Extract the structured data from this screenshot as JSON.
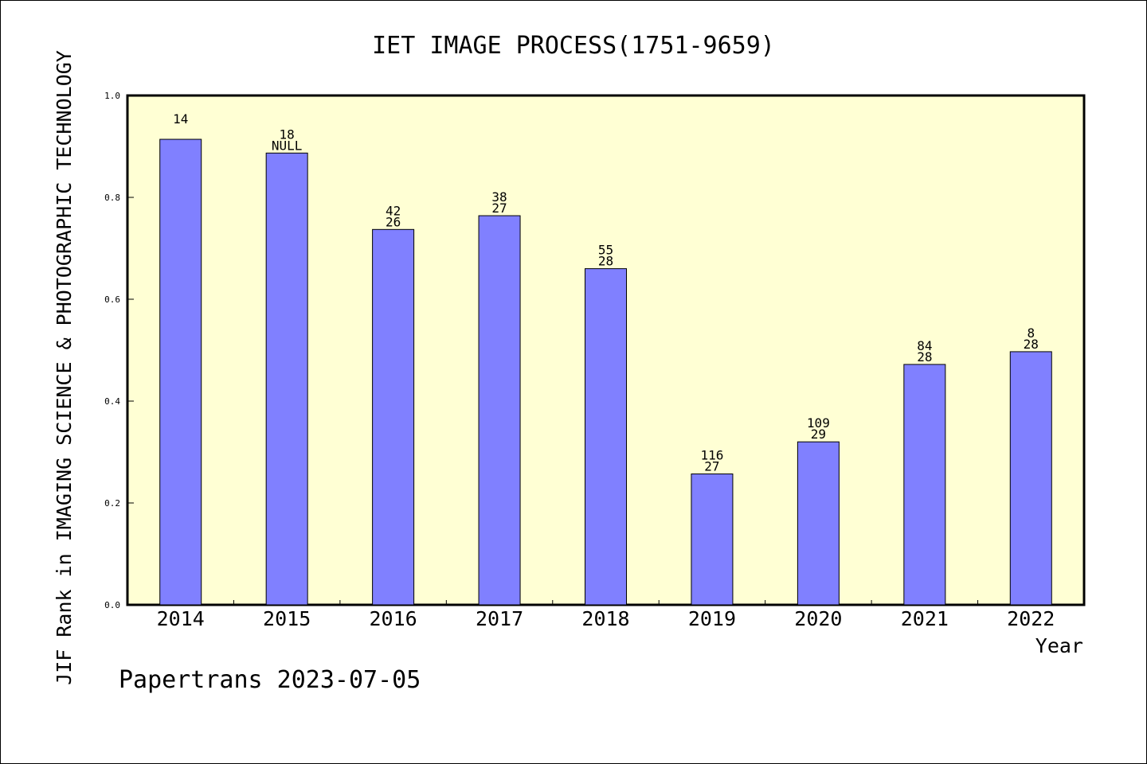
{
  "chart_data": {
    "type": "bar",
    "title": "IET IMAGE PROCESS(1751-9659)",
    "xlabel": "Year",
    "ylabel": "JIF Rank in IMAGING SCIENCE & PHOTOGRAPHIC TECHNOLOGY",
    "ylim": [
      0,
      1.0
    ],
    "yticks": [
      "0.0",
      "0.2",
      "0.4",
      "0.6",
      "0.8",
      "1.0"
    ],
    "categories": [
      "2014",
      "2015",
      "2016",
      "2017",
      "2018",
      "2019",
      "2020",
      "2021",
      "2022"
    ],
    "values": [
      0.914,
      0.887,
      0.737,
      0.764,
      0.66,
      0.257,
      0.32,
      0.472,
      0.497
    ],
    "labels_top": [
      "14",
      "18",
      "42",
      "38",
      "55",
      "116",
      "109",
      "84",
      "8"
    ],
    "labels_bottom": [
      "",
      "NULL",
      "26",
      "27",
      "28",
      "27",
      "29",
      "28",
      "28"
    ],
    "bar_color": "#8080ff",
    "plot_background": "#ffffd4",
    "grid": false,
    "legend": "none"
  },
  "footer": "Papertrans 2023-07-05"
}
